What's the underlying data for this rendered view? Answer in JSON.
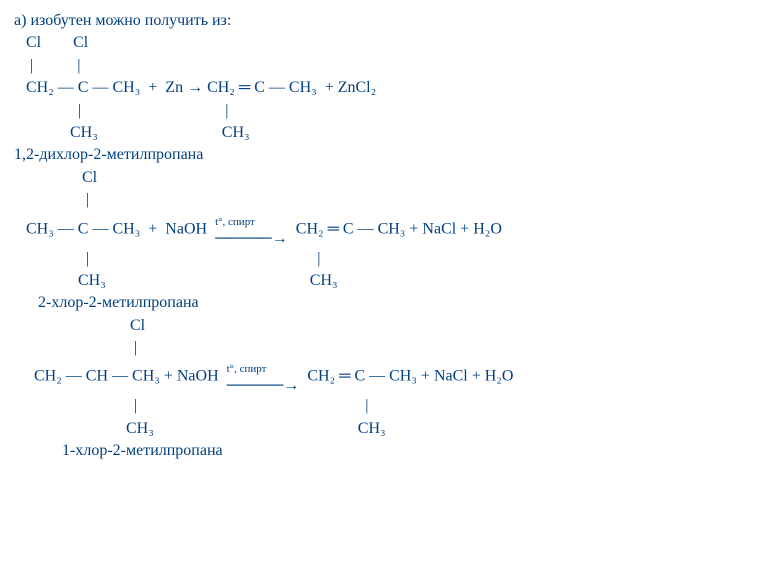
{
  "section_label": "a)",
  "intro_text": "изобутен можно получить из:",
  "reaction1": {
    "line1": "   Cl        Cl",
    "line2": "    |           |",
    "line3": "   CH₂ — C — CH₃  +  Zn → CH₂ ═ C — CH₃  + ZnCl₂",
    "line4": "                |                                    |",
    "line5": "              CH₃                               CH₃",
    "name": "1,2-дихлор-2-метилпропана"
  },
  "reaction2": {
    "line1": "                 Cl",
    "line2": "                  |",
    "line3_left": "   CH₃ — C — CH₃  +  NaOH  ",
    "cond": "t°, спирт",
    "line3_right": "  CH₂ ═ C — CH₃ + NaCl + H₂O",
    "line4": "                  |                                                         |",
    "line5": "                CH₃                                                   CH₃",
    "name": "      2-хлор-2-метилпропана"
  },
  "reaction3": {
    "line1": "                             Cl",
    "line2": "                              |",
    "line3_left": "     CH₂ — CH — CH₃ + NaOH  ",
    "cond": "t°, спирт",
    "line3_right": "  CH₂ ═ C — CH₃ + NaCl + H₂O",
    "line4": "                              |                                                         |",
    "line5": "                            CH₃                                                   CH₃",
    "name": "            1-хлор-2-метилпропана"
  },
  "colors": {
    "text": "#004080",
    "background": "#ffffff"
  }
}
